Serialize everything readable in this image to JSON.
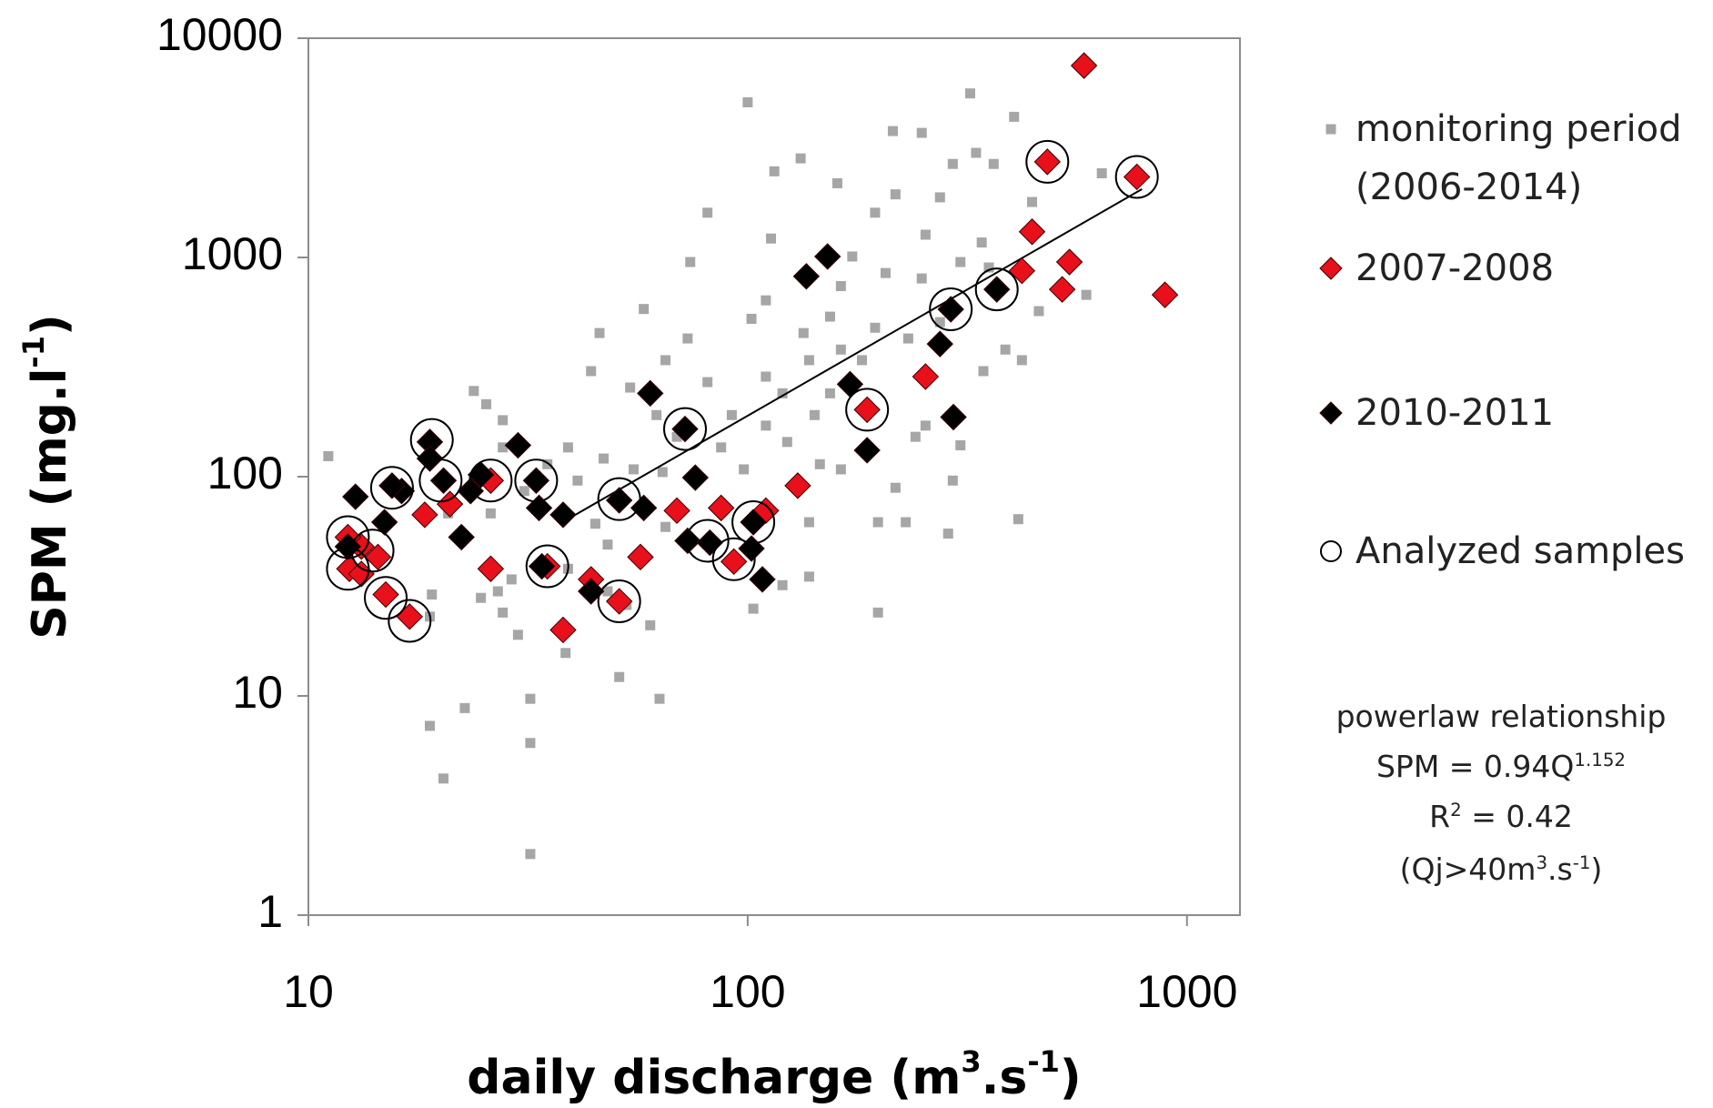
{
  "chart_data": {
    "type": "scatter",
    "xlabel": [
      "daily discharge (m",
      "3",
      ".s",
      "-1",
      ")"
    ],
    "ylabel": [
      "SPM (mg.l",
      "-1",
      ")"
    ],
    "log_x": true,
    "log_y": true,
    "xlim": [
      10,
      1320
    ],
    "ylim": [
      1,
      10000
    ],
    "xticks": [
      10,
      100,
      1000
    ],
    "yticks": [
      1,
      10,
      100,
      1000,
      10000
    ],
    "legend": "right",
    "series": [
      {
        "name": "monitoring period (2006-2014)",
        "color": "#a6a6a6",
        "marker": "square",
        "x": [
          100,
          321,
          404,
          214,
          249,
          132,
          115,
          160,
          331,
          293,
          363,
          640,
          217,
          274,
          81,
          444,
          113,
          341,
          74,
          173,
          206,
          249,
          163,
          110,
          102,
          58,
          46,
          134,
          154,
          195,
          232,
          274,
          386,
          421,
          344,
          73,
          65,
          44,
          54,
          81,
          110,
          138,
          163,
          62,
          69,
          87,
          110,
          123,
          146,
          163,
          217,
          241,
          254,
          293,
          413,
          229,
          198,
          138,
          138,
          120,
          65,
          48,
          45,
          41,
          39,
          35,
          47,
          55,
          64,
          48,
          53,
          60,
          63,
          51,
          32,
          32,
          32,
          20.3,
          18.9,
          22.7,
          19.1,
          18.9,
          24.7,
          27.7,
          30,
          27,
          29,
          23.8,
          25.4,
          27.7,
          27.7,
          11.1,
          20.8,
          26,
          31,
          39,
          38.5,
          103,
          198,
          286,
          305,
          354,
          460,
          590,
          92,
          98,
          142,
          120,
          182,
          154,
          305,
          254,
          195
        ],
        "y": [
          5100,
          5600,
          4380,
          3770,
          3700,
          2830,
          2470,
          2180,
          3000,
          2670,
          2670,
          2420,
          1940,
          1880,
          1600,
          1790,
          1220,
          1170,
          953,
          1010,
          849,
          802,
          740,
          637,
          525,
          582,
          452,
          452,
          537,
          478,
          427,
          507,
          380,
          340,
          303,
          427,
          340,
          303,
          255,
          270,
          286,
          340,
          380,
          191,
          152,
          136,
          171,
          144,
          114,
          108,
          89,
          152,
          171,
          96,
          64,
          62,
          62,
          62,
          35,
          32,
          59,
          49,
          61,
          96,
          136,
          114,
          121,
          108,
          105,
          30,
          26,
          21,
          9.7,
          12.2,
          9.7,
          6.1,
          1.9,
          4.2,
          7.3,
          8.8,
          29,
          23,
          28,
          24,
          19,
          30,
          34,
          246,
          214,
          181,
          136,
          124,
          68,
          68,
          86,
          38,
          15.7,
          25,
          24,
          55,
          139,
          900,
          569,
          675,
          191,
          108,
          191,
          240,
          340,
          240,
          953,
          1270,
          1600
        ]
      },
      {
        "name": "2007-2008",
        "color": "#e8101b",
        "marker": "diamond",
        "x": [
          583,
          481,
          769,
          444,
          540,
          421,
          520,
          891,
          254,
          187,
          130,
          110,
          87,
          69,
          93,
          57,
          51,
          44,
          38,
          35,
          26,
          21,
          18.4,
          17,
          15,
          14.4,
          13.2,
          12.3,
          12.4,
          13.2,
          26
        ],
        "y": [
          7500,
          2730,
          2330,
          1310,
          953,
          869,
          715,
          675,
          286,
          202,
          91,
          70,
          72,
          70,
          41,
          43,
          27,
          34,
          20,
          39,
          38,
          75,
          67,
          23,
          29,
          43,
          48,
          53,
          38,
          36,
          96
        ]
      },
      {
        "name": "2010-2011",
        "color": "#000000",
        "marker": "diamond",
        "x": [
          152,
          136,
          290,
          369,
          274,
          294,
          171,
          187,
          72,
          60,
          76,
          58,
          51,
          73,
          82,
          102,
          103,
          108,
          44,
          38,
          33.5,
          33,
          34,
          30,
          24.7,
          23.4,
          22.3,
          20.3,
          18.9,
          18.9,
          16.3,
          15.5,
          14.9,
          12.8,
          12.3
        ],
        "y": [
          1010,
          820,
          580,
          715,
          403,
          187,
          264,
          132,
          165,
          240,
          99,
          72,
          78,
          51,
          50,
          47,
          62,
          34,
          30,
          67,
          72,
          96,
          39,
          139,
          102,
          86,
          53,
          96,
          144,
          121,
          86,
          91,
          62,
          81,
          48
        ]
      },
      {
        "name": "Analyzed samples",
        "color": "#000000",
        "marker": "circle",
        "x": [
          481,
          769,
          290,
          369,
          187,
          72,
          51,
          51,
          35,
          33,
          81,
          93,
          103,
          19.1,
          20,
          26,
          15.5,
          12.3,
          12.3,
          15,
          17,
          14
        ],
        "y": [
          2730,
          2330,
          580,
          715,
          202,
          165,
          79,
          27,
          39,
          96,
          51,
          42,
          62,
          147,
          96,
          96,
          89,
          53,
          38,
          28,
          22,
          46
        ]
      }
    ],
    "trendline": {
      "x": [
        40,
        790
      ],
      "y": [
        66,
        2050
      ],
      "color": "#000000"
    },
    "annotation": [
      [
        "powerlaw relationship"
      ],
      [
        "SPM = 0.94Q",
        "1.152"
      ],
      [
        "R",
        "2",
        " = 0.42"
      ],
      [
        "(Qj>40m",
        "3",
        ".s",
        "-1",
        ")"
      ]
    ]
  }
}
